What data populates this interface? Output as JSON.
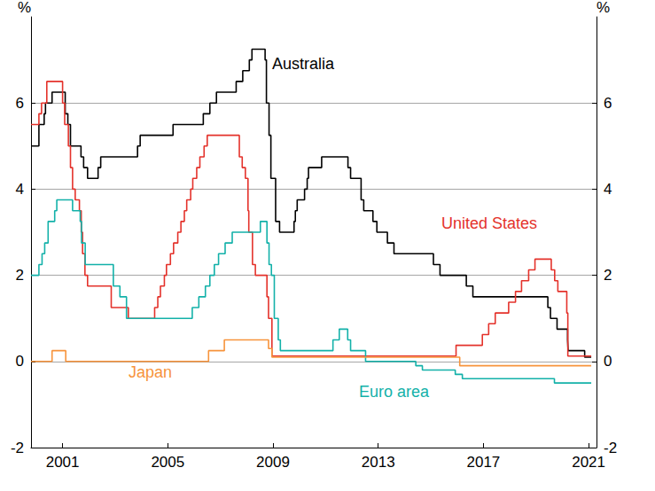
{
  "chart_data": {
    "type": "step",
    "ylabel": "%",
    "xlim": [
      1999.8,
      2021.3
    ],
    "xticks": [
      2001,
      2005,
      2009,
      2013,
      2017,
      2021
    ],
    "ylim": [
      -2,
      8
    ],
    "yticks": [
      -2,
      0,
      2,
      4,
      6
    ],
    "grid": true,
    "series": [
      {
        "name": "Australia",
        "color": "#000000",
        "x": [
          1999.8,
          2000.1,
          2000.3,
          2000.35,
          2000.6,
          2001.1,
          2001.2,
          2001.3,
          2001.7,
          2001.8,
          2001.95,
          2002.35,
          2002.45,
          2003.85,
          2003.95,
          2005.2,
          2006.35,
          2006.6,
          2006.85,
          2007.6,
          2007.85,
          2008.1,
          2008.2,
          2008.7,
          2008.75,
          2008.85,
          2008.92,
          2009.1,
          2009.25,
          2009.8,
          2009.85,
          2009.92,
          2010.2,
          2010.3,
          2010.35,
          2010.85,
          2011.85,
          2011.95,
          2012.35,
          2012.45,
          2012.8,
          2012.95,
          2013.35,
          2013.6,
          2015.1,
          2015.35,
          2016.35,
          2016.6,
          2019.45,
          2019.55,
          2019.8,
          2020.2,
          2020.22,
          2020.85,
          2021.1
        ],
        "values": [
          5.0,
          5.5,
          5.75,
          6.0,
          6.25,
          5.75,
          5.5,
          5.0,
          4.75,
          4.5,
          4.25,
          4.5,
          4.75,
          5.0,
          5.25,
          5.5,
          5.75,
          6.0,
          6.25,
          6.5,
          6.75,
          7.0,
          7.25,
          7.0,
          6.0,
          5.25,
          4.25,
          3.25,
          3.0,
          3.25,
          3.5,
          3.75,
          4.0,
          4.25,
          4.5,
          4.75,
          4.5,
          4.25,
          3.75,
          3.5,
          3.25,
          3.0,
          2.75,
          2.5,
          2.25,
          2.0,
          1.75,
          1.5,
          1.25,
          1.0,
          0.75,
          0.5,
          0.25,
          0.1,
          0.1
        ]
      },
      {
        "name": "United States",
        "color": "#e4322b",
        "x": [
          1999.8,
          2000.1,
          2000.2,
          2000.4,
          2001.0,
          2001.08,
          2001.22,
          2001.3,
          2001.38,
          2001.48,
          2001.64,
          2001.71,
          2001.76,
          2001.85,
          2001.95,
          2002.85,
          2003.5,
          2004.5,
          2004.62,
          2004.72,
          2004.87,
          2004.95,
          2005.1,
          2005.22,
          2005.38,
          2005.5,
          2005.63,
          2005.72,
          2005.87,
          2005.95,
          2006.1,
          2006.22,
          2006.38,
          2006.5,
          2007.72,
          2007.83,
          2007.95,
          2008.05,
          2008.08,
          2008.22,
          2008.33,
          2008.77,
          2008.83,
          2008.96,
          2015.96,
          2016.96,
          2017.2,
          2017.45,
          2017.96,
          2018.22,
          2018.45,
          2018.72,
          2018.96,
          2019.58,
          2019.71,
          2019.83,
          2020.17,
          2020.21,
          2021.1
        ],
        "values": [
          5.5,
          5.75,
          6.0,
          6.5,
          6.0,
          5.5,
          5.0,
          4.5,
          4.0,
          3.75,
          3.5,
          3.0,
          2.5,
          2.0,
          1.75,
          1.25,
          1.0,
          1.25,
          1.5,
          1.75,
          2.0,
          2.25,
          2.5,
          2.75,
          3.0,
          3.25,
          3.5,
          3.75,
          4.0,
          4.25,
          4.5,
          4.75,
          5.0,
          5.25,
          4.75,
          4.5,
          4.25,
          3.5,
          3.0,
          2.25,
          2.0,
          1.5,
          1.0,
          0.125,
          0.375,
          0.625,
          0.875,
          1.125,
          1.375,
          1.625,
          1.875,
          2.125,
          2.375,
          2.125,
          1.875,
          1.625,
          1.125,
          0.125,
          0.125
        ]
      },
      {
        "name": "Euro area",
        "color": "#13b1a9",
        "x": [
          1999.8,
          2000.1,
          2000.22,
          2000.32,
          2000.45,
          2000.7,
          2000.78,
          2001.38,
          2001.67,
          2001.72,
          2001.86,
          2002.93,
          2003.18,
          2003.43,
          2005.93,
          2006.18,
          2006.43,
          2006.6,
          2006.77,
          2006.93,
          2007.18,
          2007.45,
          2008.52,
          2008.77,
          2008.85,
          2008.94,
          2009.05,
          2009.2,
          2009.28,
          2011.28,
          2011.52,
          2011.84,
          2011.95,
          2012.52,
          2014.43,
          2014.68,
          2015.93,
          2016.2,
          2019.7,
          2021.1
        ],
        "values": [
          2.0,
          2.25,
          2.5,
          2.75,
          3.25,
          3.5,
          3.75,
          3.5,
          3.25,
          2.75,
          2.25,
          1.75,
          1.5,
          1.0,
          1.25,
          1.5,
          1.75,
          2.0,
          2.25,
          2.5,
          2.75,
          3.0,
          3.25,
          2.75,
          2.25,
          2.0,
          1.0,
          0.5,
          0.25,
          0.5,
          0.75,
          0.5,
          0.25,
          0.0,
          -0.1,
          -0.2,
          -0.3,
          -0.4,
          -0.5,
          -0.5
        ]
      },
      {
        "name": "Japan",
        "color": "#f7943c",
        "x": [
          1999.8,
          2000.6,
          2001.12,
          2006.55,
          2007.15,
          2008.83,
          2008.96,
          2016.1,
          2021.1
        ],
        "values": [
          0.0,
          0.25,
          0.0,
          0.25,
          0.5,
          0.3,
          0.1,
          -0.1,
          -0.1
        ]
      }
    ]
  }
}
